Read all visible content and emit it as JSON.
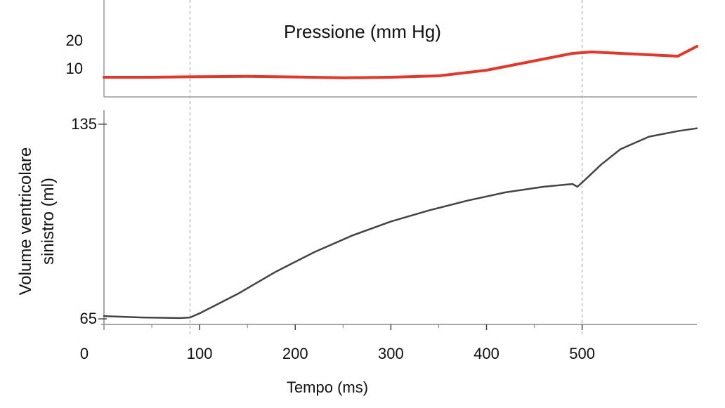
{
  "chart_data": [
    {
      "type": "line",
      "series": [
        {
          "name": "Pressione (mm Hg)",
          "color": "#e0392b",
          "x": [
            0,
            50,
            100,
            150,
            200,
            250,
            300,
            350,
            400,
            430,
            460,
            490,
            510,
            540,
            570,
            600,
            620
          ],
          "y": [
            7,
            7,
            7.2,
            7.3,
            7.1,
            6.8,
            7.0,
            7.5,
            9.5,
            11.5,
            13.5,
            15.5,
            16,
            15.5,
            15,
            14.5,
            18
          ]
        }
      ],
      "yticks": [
        10,
        20
      ],
      "ylim": [
        0,
        30
      ]
    },
    {
      "type": "line",
      "series": [
        {
          "color": "#444444",
          "x": [
            0,
            40,
            80,
            90,
            100,
            140,
            180,
            220,
            260,
            300,
            340,
            380,
            420,
            460,
            490,
            495,
            500,
            520,
            540,
            570,
            600,
            620
          ],
          "y": [
            66,
            65.5,
            65.3,
            65.5,
            67,
            74,
            82,
            89,
            95,
            100,
            104,
            107.5,
            110.5,
            112.5,
            113.5,
            112.5,
            114,
            120.5,
            126,
            130.5,
            132.5,
            133.5
          ]
        }
      ],
      "ylabel": "Volume ventricolare\nsinistro (ml)",
      "ylabel_lines": [
        "Volume ventricolare",
        "sinistro (ml)"
      ],
      "yticks": [
        65,
        135
      ],
      "ylim": [
        63,
        140
      ]
    }
  ],
  "x_axis": {
    "label": "Tempo (ms)",
    "ticks": [
      0,
      100,
      200,
      300,
      400,
      500
    ],
    "xlim": [
      0,
      620
    ]
  },
  "markers": [
    90,
    500
  ]
}
